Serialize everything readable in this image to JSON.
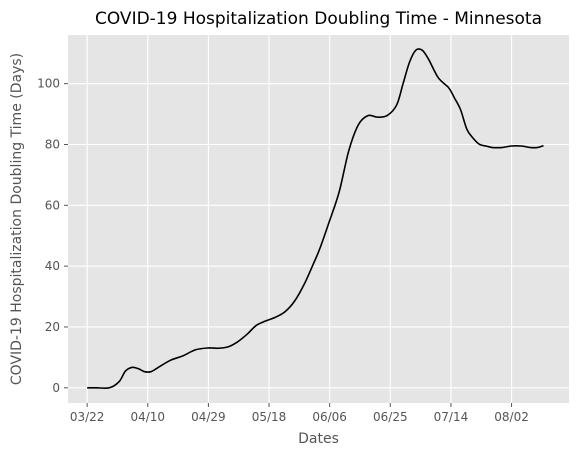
{
  "chart_data": {
    "type": "line",
    "title": "COVID-19 Hospitalization Doubling Time - Minnesota",
    "xlabel": "Dates",
    "ylabel": "COVID-19 Hospitalization Doubling Time (Days)",
    "x_tick_labels": [
      "03/22",
      "04/10",
      "04/29",
      "05/18",
      "06/06",
      "06/25",
      "07/14",
      "08/02"
    ],
    "y_ticks": [
      0,
      20,
      40,
      60,
      80,
      100
    ],
    "xlim": [
      "2020-03-16",
      "2020-08-20"
    ],
    "ylim": [
      -5,
      116
    ],
    "grid": true,
    "background": "#E5E5E5",
    "grid_color": "#FFFFFF",
    "line_color": "#000000",
    "series": [
      {
        "x": [
          "2020-03-22",
          "2020-03-25",
          "2020-03-29",
          "2020-04-01",
          "2020-04-03",
          "2020-04-05",
          "2020-04-07",
          "2020-04-09",
          "2020-04-11",
          "2020-04-13",
          "2020-04-17",
          "2020-04-21",
          "2020-04-25",
          "2020-04-29",
          "2020-05-02",
          "2020-05-05",
          "2020-05-08",
          "2020-05-11",
          "2020-05-14",
          "2020-05-17",
          "2020-05-20",
          "2020-05-23",
          "2020-05-26",
          "2020-05-29",
          "2020-06-01",
          "2020-06-03",
          "2020-06-06",
          "2020-06-09",
          "2020-06-12",
          "2020-06-15",
          "2020-06-18",
          "2020-06-21",
          "2020-06-24",
          "2020-06-27",
          "2020-06-29",
          "2020-07-01",
          "2020-07-03",
          "2020-07-05",
          "2020-07-07",
          "2020-07-10",
          "2020-07-13",
          "2020-07-14",
          "2020-07-15",
          "2020-07-17",
          "2020-07-19",
          "2020-07-21",
          "2020-07-23",
          "2020-07-25",
          "2020-07-27",
          "2020-07-30",
          "2020-08-02",
          "2020-08-05",
          "2020-08-08",
          "2020-08-10",
          "2020-08-12"
        ],
        "y": [
          0,
          0,
          0,
          2,
          5.5,
          6.7,
          6.3,
          5.3,
          5.3,
          6.5,
          9,
          10.5,
          12.5,
          13.1,
          13,
          13.4,
          15,
          17.5,
          20.5,
          22,
          23.2,
          25,
          28.5,
          34,
          41,
          46,
          55,
          64.5,
          78,
          86.5,
          89.5,
          89,
          89.5,
          93,
          100,
          107,
          111,
          111,
          108,
          102,
          99,
          97.5,
          95.5,
          91.5,
          85,
          82,
          80,
          79.5,
          79,
          79,
          79.5,
          79.5,
          79,
          79,
          79.6
        ]
      }
    ]
  }
}
